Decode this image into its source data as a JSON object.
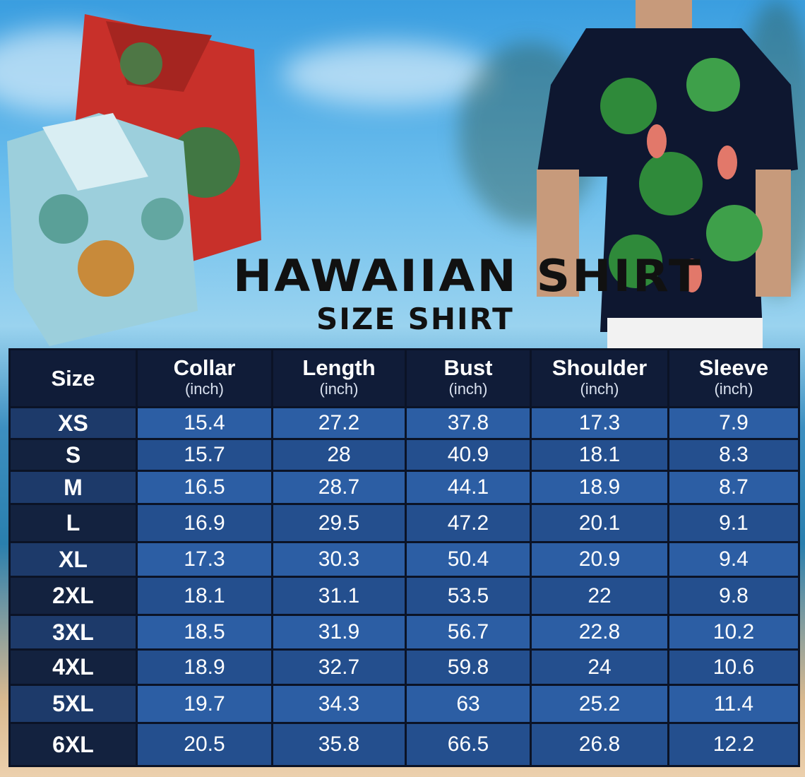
{
  "title": "HAWAIIAN SHIRT",
  "subtitle": "SIZE SHIRT",
  "colors": {
    "header": "#101c38",
    "row_light": "#2c5ea4",
    "row_dark": "#244f8e",
    "size_col": "#13223f"
  },
  "table": {
    "headers": [
      {
        "label": "Size",
        "unit": ""
      },
      {
        "label": "Collar",
        "unit": "(inch)"
      },
      {
        "label": "Length",
        "unit": "(inch)"
      },
      {
        "label": "Bust",
        "unit": "(inch)"
      },
      {
        "label": "Shoulder",
        "unit": "(inch)"
      },
      {
        "label": "Sleeve",
        "unit": "(inch)"
      }
    ],
    "rows": [
      [
        "XS",
        "15.4",
        "27.2",
        "37.8",
        "17.3",
        "7.9"
      ],
      [
        "S",
        "15.7",
        "28",
        "40.9",
        "18.1",
        "8.3"
      ],
      [
        "M",
        "16.5",
        "28.7",
        "44.1",
        "18.9",
        "8.7"
      ],
      [
        "L",
        "16.9",
        "29.5",
        "47.2",
        "20.1",
        "9.1"
      ],
      [
        "XL",
        "17.3",
        "30.3",
        "50.4",
        "20.9",
        "9.4"
      ],
      [
        "2XL",
        "18.1",
        "31.1",
        "53.5",
        "22",
        "9.8"
      ],
      [
        "3XL",
        "18.5",
        "31.9",
        "56.7",
        "22.8",
        "10.2"
      ],
      [
        "4XL",
        "18.9",
        "32.7",
        "59.8",
        "24",
        "10.6"
      ],
      [
        "5XL",
        "19.7",
        "34.3",
        "63",
        "25.2",
        "11.4"
      ],
      [
        "6XL",
        "20.5",
        "35.8",
        "66.5",
        "26.8",
        "12.2"
      ]
    ]
  }
}
